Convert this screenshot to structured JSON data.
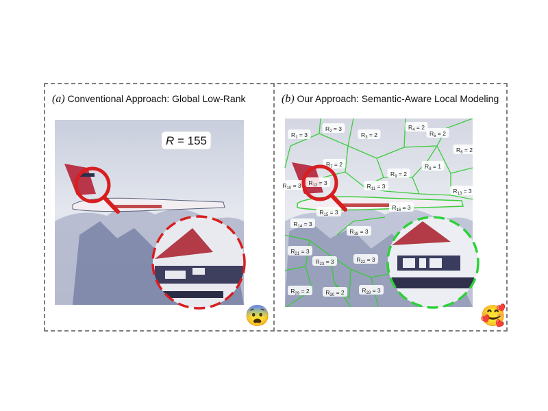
{
  "panel_a": {
    "label": "(a)",
    "title": "Conventional Approach: Global Low-Rank",
    "rank_badge": {
      "symbol": "R",
      "text": " = 155"
    },
    "emoji": "😨"
  },
  "panel_b": {
    "label": "(b)",
    "title": "Our Approach: Semantic-Aware Local Modeling",
    "emoji": "🥰",
    "regions": [
      {
        "sub": "1",
        "val": "3"
      },
      {
        "sub": "2",
        "val": "3"
      },
      {
        "sub": "3",
        "val": "2"
      },
      {
        "sub": "4",
        "val": "2"
      },
      {
        "sub": "5",
        "val": "2"
      },
      {
        "sub": "6",
        "val": "2"
      },
      {
        "sub": "7",
        "val": "2"
      },
      {
        "sub": "8",
        "val": "1"
      },
      {
        "sub": "9",
        "val": "2"
      },
      {
        "sub": "10",
        "val": "3"
      },
      {
        "sub": "11",
        "val": "3"
      },
      {
        "sub": "12",
        "val": "3"
      },
      {
        "sub": "13",
        "val": "3"
      },
      {
        "sub": "14",
        "val": "3"
      },
      {
        "sub": "15",
        "val": "3"
      },
      {
        "sub": "16",
        "val": "3"
      },
      {
        "sub": "18",
        "val": "3"
      },
      {
        "sub": "21",
        "val": "3"
      },
      {
        "sub": "22",
        "val": "3"
      },
      {
        "sub": "23",
        "val": "3"
      },
      {
        "sub": "28",
        "val": "3"
      },
      {
        "sub": "29",
        "val": "2"
      },
      {
        "sub": "30",
        "val": "2"
      }
    ]
  },
  "colors": {
    "frame": "#7d7d7d",
    "magnifier": "#d81e1e",
    "zoom_a": "#d81e1e",
    "zoom_b": "#2ed13a",
    "segment_lines": "#33cc33"
  }
}
